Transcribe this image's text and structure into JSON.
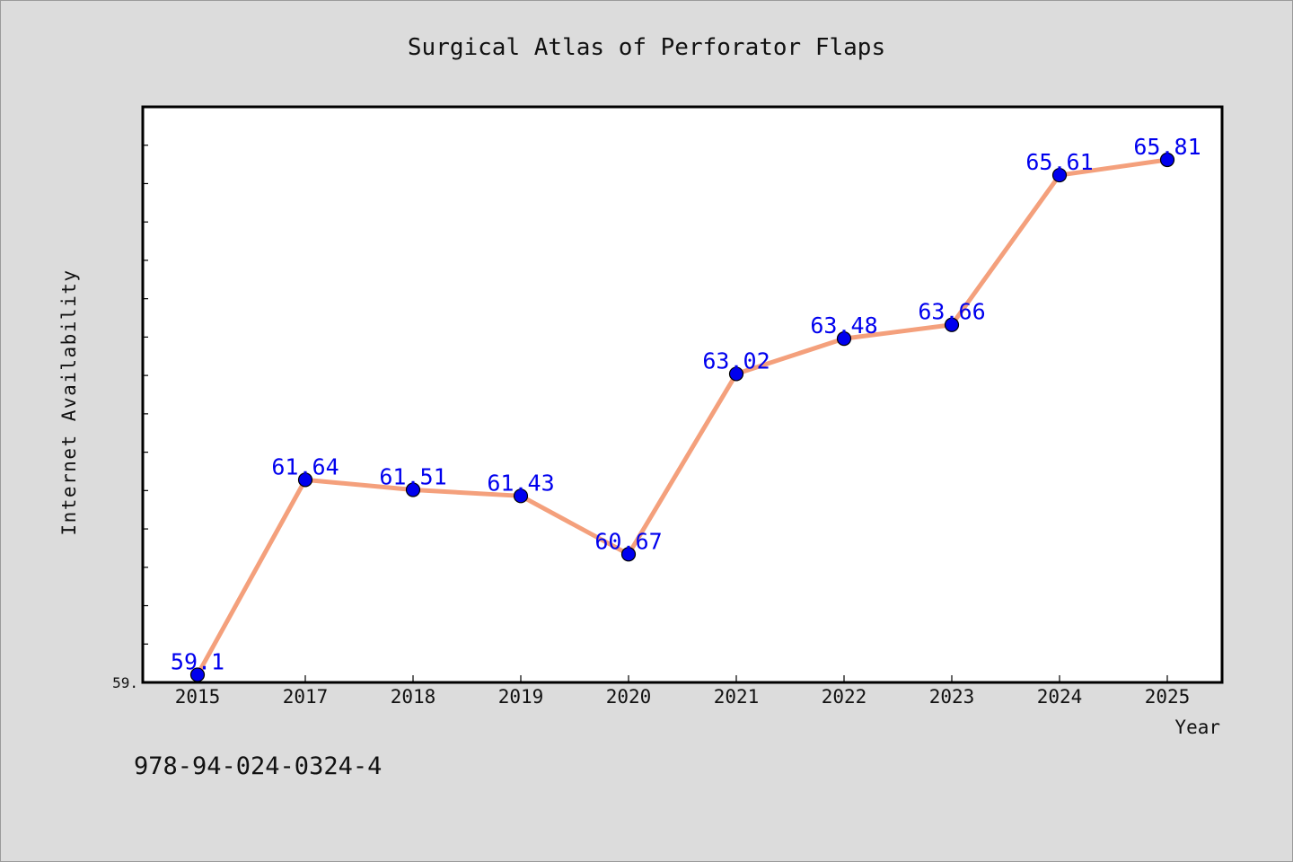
{
  "chart_data": {
    "type": "line",
    "title": "Surgical Atlas of Perforator Flaps",
    "xlabel": "Year",
    "ylabel": "Internet Availability",
    "categories": [
      "2015",
      "2017",
      "2018",
      "2019",
      "2020",
      "2021",
      "2022",
      "2023",
      "2024",
      "2025"
    ],
    "series": [
      {
        "values": [
          59.1,
          61.64,
          61.51,
          61.43,
          60.67,
          63.02,
          63.48,
          63.66,
          65.61,
          65.81
        ],
        "data_labels": [
          "59.1",
          "61.64",
          "61.51",
          "61.43",
          "60.67",
          "63.02",
          "63.48",
          "63.66",
          "65.61",
          "65.81"
        ]
      }
    ],
    "ylim": [
      59.0,
      66.5
    ],
    "y_tick_label": "59.",
    "grid": false,
    "line_color": "#f4a07c",
    "marker_color": "#0000ee",
    "label_color": "#0000ee",
    "plot_background": "#ffffff",
    "page_background": "#dcdcdc"
  },
  "footer": {
    "isbn": "978-94-024-0324-4"
  }
}
